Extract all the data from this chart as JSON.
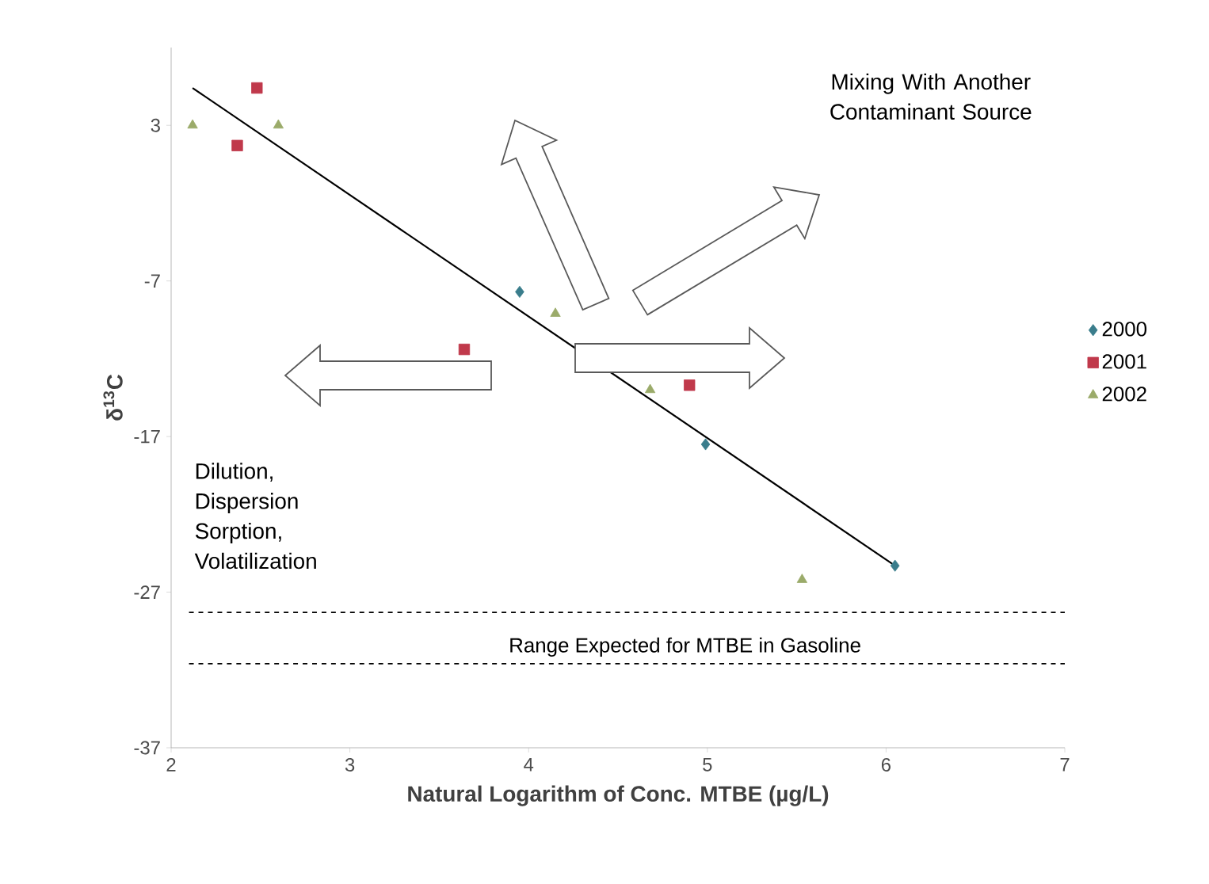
{
  "chart_data": {
    "type": "scatter",
    "xlabel": "Natural Logarithm of Conc. MTBE (µg/L)",
    "ylabel": "δ$^{13}$C",
    "xlim": [
      2,
      7
    ],
    "ylim": [
      -37,
      8
    ],
    "xticks": [
      2,
      3,
      4,
      5,
      6,
      7
    ],
    "yticks": [
      -37,
      -27,
      -17,
      -7,
      3
    ],
    "legend": "right",
    "series": [
      {
        "name": "2000",
        "color": "#3a7d8c",
        "marker": "diamond",
        "x": [
          3.95,
          4.99,
          6.05
        ],
        "values": [
          -7.7,
          -17.5,
          -25.3
        ]
      },
      {
        "name": "2001",
        "color": "#c0394b",
        "marker": "square",
        "x": [
          2.37,
          2.48,
          3.64,
          4.9
        ],
        "values": [
          1.7,
          5.4,
          -11.4,
          -13.7
        ]
      },
      {
        "name": "2002",
        "color": "#9bab6a",
        "marker": "triangle",
        "x": [
          2.12,
          2.6,
          4.15,
          4.68,
          5.53
        ],
        "values": [
          3.0,
          3.0,
          -9.1,
          -14.0,
          -26.2
        ]
      },
      {
        "type": "line",
        "color": "#000000",
        "marker": "none",
        "x": [
          2.12,
          6.05
        ],
        "values": [
          5.4,
          -25.3
        ]
      }
    ],
    "ref_lines": [
      {
        "axis": "y",
        "value": -28.3,
        "line_style": "dashed"
      },
      {
        "axis": "y",
        "value": -31.6,
        "label": "Range Expected for MTBE in Gasoline",
        "line_style": "dashed"
      }
    ],
    "annotations": [
      "Mixing With Another Contaminant Source",
      "Dilution, Dispersion Sorption, Volatilization"
    ]
  }
}
